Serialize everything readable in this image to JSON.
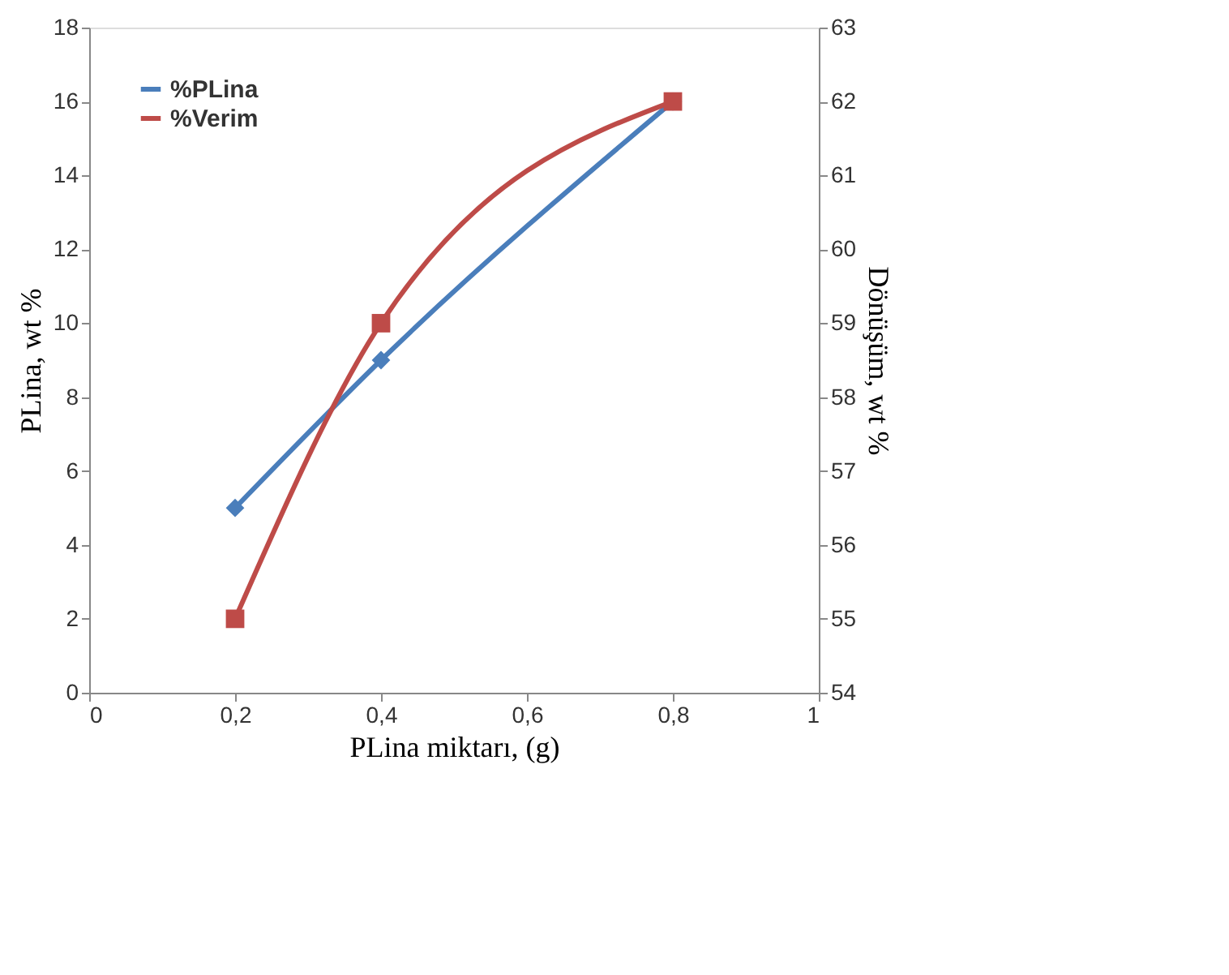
{
  "chart_data": {
    "type": "line",
    "xlabel": "PLina miktarı, (g)",
    "ylabel": "PLina, wt %",
    "y2label": "Dönüşüm, wt %",
    "x": [
      0.2,
      0.4,
      0.8
    ],
    "series": [
      {
        "name": "%PLina",
        "color": "#4a7ebb",
        "values": [
          5,
          9,
          16
        ],
        "marker": "diamond"
      },
      {
        "name": "%Verim",
        "color": "#be4b48",
        "values": [
          55,
          59,
          62
        ],
        "marker": "square",
        "axis": "y2"
      }
    ],
    "xlim": [
      0,
      1
    ],
    "xticks": [
      0,
      {
        "value": 0.2,
        "label": "0,2"
      },
      {
        "value": 0.4,
        "label": "0,4"
      },
      {
        "value": 0.6,
        "label": "0,6"
      },
      {
        "value": 0.8,
        "label": "0,8"
      },
      1
    ],
    "ylim": [
      0,
      18
    ],
    "yticks": [
      0,
      2,
      4,
      6,
      8,
      10,
      12,
      14,
      16,
      18
    ],
    "y2lim": [
      54,
      63
    ],
    "y2ticks": [
      54,
      55,
      56,
      57,
      58,
      59,
      60,
      61,
      62,
      63
    ],
    "grid": false,
    "legend": "top left",
    "line_style": "solid"
  }
}
